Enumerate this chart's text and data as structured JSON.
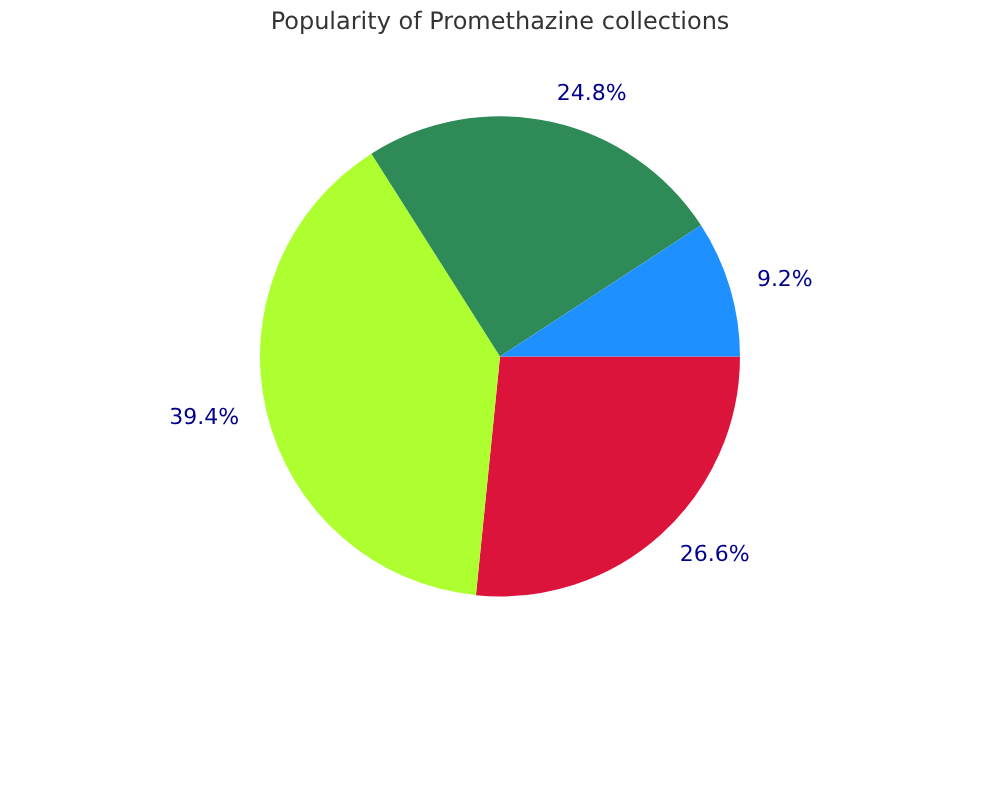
{
  "chart_data": {
    "type": "pie",
    "title": "Popularity of Promethazine collections",
    "categories": [
      null,
      null,
      null,
      null
    ],
    "values": [
      26.6,
      39.4,
      24.8,
      9.2
    ],
    "colors": [
      "#dc143c",
      "#adff2f",
      "#2e8b57",
      "#1e90ff"
    ],
    "value_labels": [
      "26.6%",
      "39.4%",
      "24.8%",
      "9.2%"
    ],
    "legend": false
  }
}
